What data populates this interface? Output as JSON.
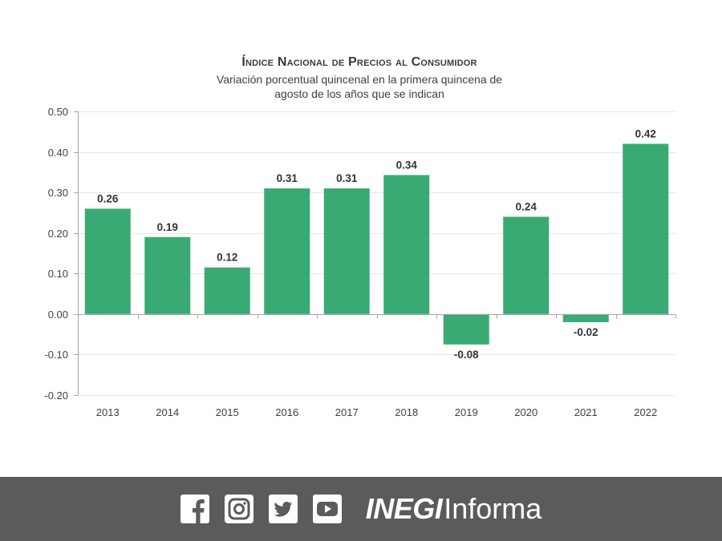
{
  "chart_data": {
    "type": "bar",
    "title": "Índice Nacional de Precios al Consumidor",
    "subtitle_lines": [
      "Variación porcentual quincenal en la primera quincena de",
      "agosto de los años que se indican"
    ],
    "categories": [
      "2013",
      "2014",
      "2015",
      "2016",
      "2017",
      "2018",
      "2019",
      "2020",
      "2021",
      "2022"
    ],
    "values": [
      0.26,
      0.19,
      0.115,
      0.31,
      0.31,
      0.343,
      -0.075,
      0.24,
      -0.02,
      0.42
    ],
    "value_labels": [
      "0.26",
      "0.19",
      "0.12",
      "0.31",
      "0.31",
      "0.34",
      "-0.08",
      "0.24",
      "-0.02",
      "0.42"
    ],
    "yticks": [
      "0.50",
      "0.40",
      "0.30",
      "0.20",
      "0.10",
      "0.00",
      "-0.10",
      "-0.20"
    ],
    "ylim": [
      -0.2,
      0.5
    ],
    "ystep": 0.1,
    "xlabel": "",
    "ylabel": "",
    "grid": true,
    "bar_color": "#3aaa74",
    "grid_color": "#e6e6e6",
    "axis_color": "#a6a6a6"
  },
  "footer": {
    "background": "#5b5b5b",
    "icons": [
      "facebook-icon",
      "instagram-icon",
      "twitter-icon",
      "youtube-icon"
    ],
    "brand_strong": "INEGI",
    "brand_light": "Informa"
  }
}
